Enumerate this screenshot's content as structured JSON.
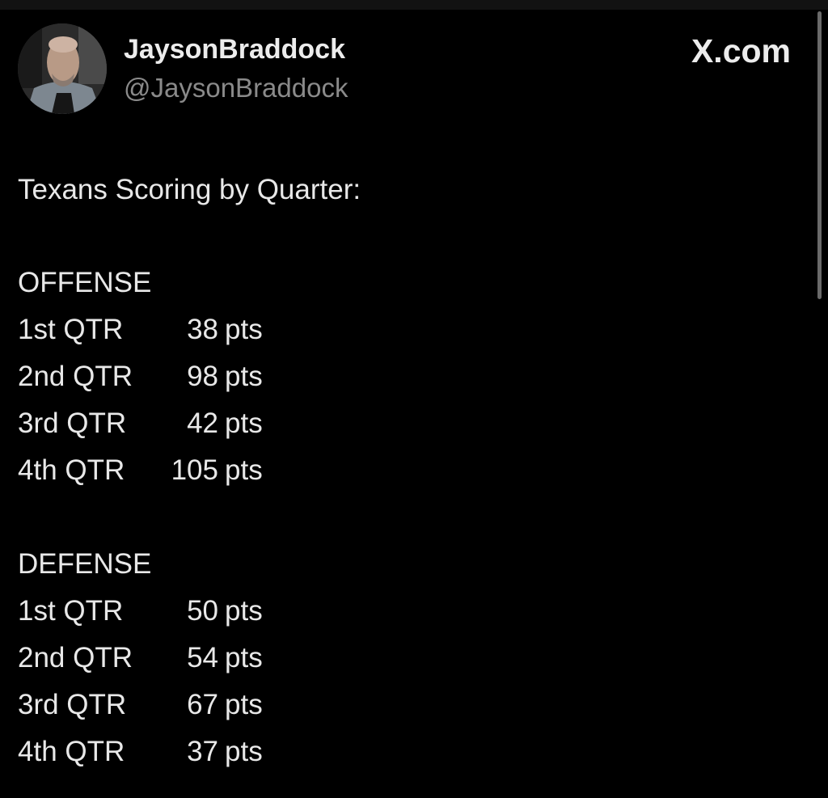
{
  "header": {
    "display_name": "JaysonBraddock",
    "handle": "@JaysonBraddock",
    "site_label": "X.com"
  },
  "tweet": {
    "title": "Texans Scoring by Quarter:",
    "sections": [
      {
        "heading": "OFFENSE",
        "rows": [
          {
            "quarter": "1st QTR",
            "value": "38",
            "unit": "pts"
          },
          {
            "quarter": "2nd QTR",
            "value": "98",
            "unit": "pts"
          },
          {
            "quarter": "3rd QTR",
            "value": "42",
            "unit": "pts"
          },
          {
            "quarter": "4th QTR",
            "value": "105",
            "unit": "pts"
          }
        ]
      },
      {
        "heading": "DEFENSE",
        "rows": [
          {
            "quarter": "1st QTR",
            "value": "50",
            "unit": "pts"
          },
          {
            "quarter": "2nd QTR",
            "value": "54",
            "unit": "pts"
          },
          {
            "quarter": "3rd QTR",
            "value": "67",
            "unit": "pts"
          },
          {
            "quarter": "4th QTR",
            "value": "37",
            "unit": "pts"
          }
        ]
      }
    ]
  }
}
